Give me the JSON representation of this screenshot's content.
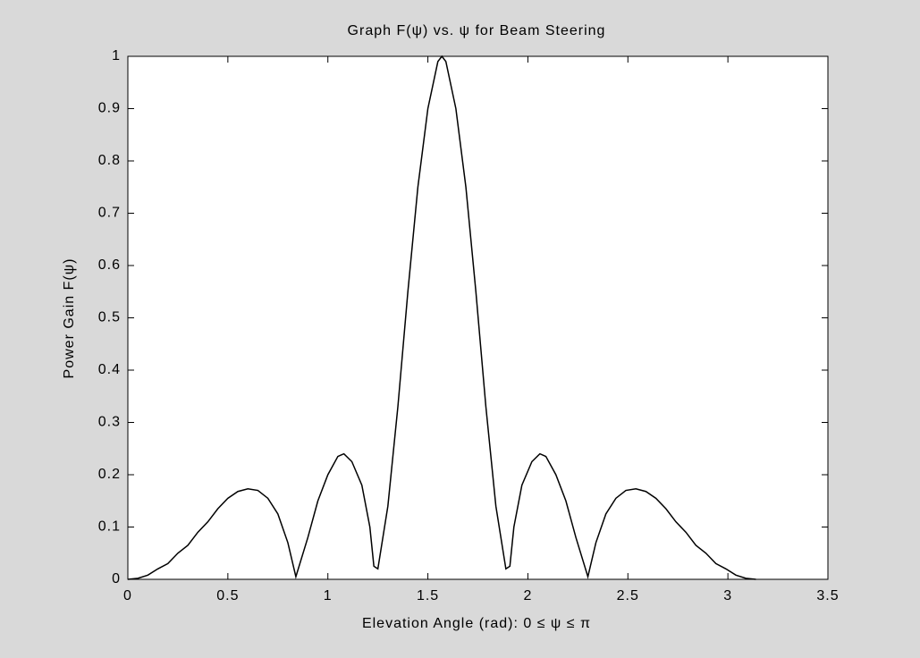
{
  "chart_data": {
    "type": "line",
    "title": "Graph F(ψ) vs. ψ for Beam Steering",
    "x_label": "Elevation Angle (rad): 0 ≤ ψ ≤ π",
    "y_label": "Power Gain F(ψ)",
    "x": [
      0,
      0.05,
      0.1,
      0.15,
      0.2,
      0.25,
      0.3,
      0.35,
      0.4,
      0.45,
      0.5,
      0.55,
      0.6,
      0.65,
      0.7,
      0.75,
      0.8,
      0.84,
      0.9,
      0.95,
      1.0,
      1.05,
      1.08,
      1.12,
      1.17,
      1.21,
      1.23,
      1.25,
      1.3,
      1.35,
      1.4,
      1.45,
      1.5,
      1.55,
      1.57,
      1.59,
      1.64,
      1.69,
      1.74,
      1.79,
      1.84,
      1.89,
      1.91,
      1.93,
      1.97,
      2.02,
      2.06,
      2.09,
      2.14,
      2.19,
      2.24,
      2.3,
      2.34,
      2.39,
      2.44,
      2.49,
      2.54,
      2.59,
      2.64,
      2.69,
      2.74,
      2.79,
      2.84,
      2.89,
      2.94,
      2.99,
      3.04,
      3.09,
      3.14
    ],
    "series": [
      {
        "color": "#000000",
        "values": [
          0,
          0.002,
          0.008,
          0.02,
          0.03,
          0.05,
          0.065,
          0.09,
          0.11,
          0.135,
          0.155,
          0.168,
          0.173,
          0.17,
          0.155,
          0.125,
          0.07,
          0.005,
          0.08,
          0.15,
          0.2,
          0.235,
          0.24,
          0.225,
          0.18,
          0.1,
          0.025,
          0.02,
          0.14,
          0.33,
          0.55,
          0.75,
          0.9,
          0.99,
          1.0,
          0.99,
          0.9,
          0.75,
          0.55,
          0.33,
          0.14,
          0.02,
          0.025,
          0.1,
          0.18,
          0.225,
          0.24,
          0.235,
          0.2,
          0.15,
          0.08,
          0.005,
          0.07,
          0.125,
          0.155,
          0.17,
          0.173,
          0.168,
          0.155,
          0.135,
          0.11,
          0.09,
          0.065,
          0.05,
          0.03,
          0.02,
          0.008,
          0.002,
          0
        ]
      }
    ],
    "xlim": [
      0,
      3.5
    ],
    "xticks": [
      0,
      0.5,
      1,
      1.5,
      2,
      2.5,
      3,
      3.5
    ],
    "ylim": [
      0,
      1
    ],
    "yticks": [
      0,
      0.1,
      0.2,
      0.3,
      0.4,
      0.5,
      0.6,
      0.7,
      0.8,
      0.9,
      1
    ]
  }
}
